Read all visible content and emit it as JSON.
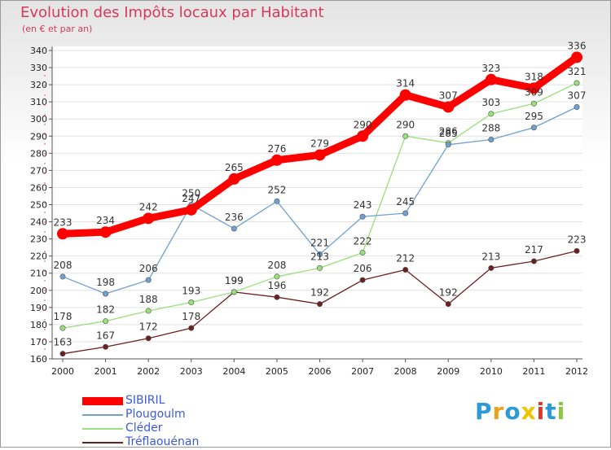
{
  "chart_data": {
    "type": "line",
    "title": "Evolution des Impôts locaux par Habitant",
    "subtitle": "(en € et par an)",
    "x": [
      "2000",
      "2001",
      "2002",
      "2003",
      "2004",
      "2005",
      "2006",
      "2007",
      "2008",
      "2009",
      "2010",
      "2011",
      "2012"
    ],
    "ylim": [
      160,
      340
    ],
    "yticks": [
      160,
      170,
      180,
      190,
      200,
      210,
      220,
      230,
      240,
      250,
      260,
      270,
      280,
      290,
      300,
      310,
      320,
      330,
      340
    ],
    "series": [
      {
        "name": "SIBIRIL",
        "color": "#ff0000",
        "values": [
          233,
          234,
          242,
          247,
          265,
          276,
          279,
          290,
          314,
          307,
          323,
          318,
          336
        ]
      },
      {
        "name": "Plougoulm",
        "color": "#6fa0d0",
        "values": [
          208,
          198,
          206,
          250,
          236,
          252,
          221,
          243,
          245,
          285,
          288,
          295,
          307
        ]
      },
      {
        "name": "Cléder",
        "color": "#98e07a",
        "values": [
          178,
          182,
          188,
          193,
          199,
          208,
          213,
          222,
          290,
          286,
          303,
          309,
          321
        ]
      },
      {
        "name": "Tréflaouénan",
        "color": "#6b2020",
        "values": [
          163,
          167,
          172,
          178,
          199,
          196,
          192,
          206,
          212,
          192,
          213,
          217,
          223
        ]
      }
    ]
  },
  "logo": {
    "text": "Proxiti",
    "letters": [
      "P",
      "r",
      "o",
      "x",
      "i",
      "t",
      "i"
    ],
    "colors": [
      "#2c9ad6",
      "#e8a21c",
      "#2c9ad6",
      "#f0c400",
      "#d83a2a",
      "#2c9ad6",
      "#8cc63f"
    ]
  }
}
